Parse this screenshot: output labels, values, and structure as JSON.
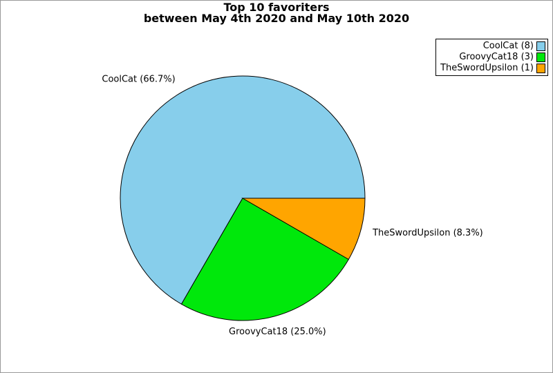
{
  "colors": {
    "figure_border": "#999999",
    "background": "#FFFFFF",
    "legend_border": "#000000",
    "text": "#000000"
  },
  "chart_data": {
    "type": "pie",
    "title": "Top 10 favoriters",
    "subtitle": "between May 4th 2020 and May 10th 2020",
    "start_angle_deg": 0,
    "direction": "counterclockwise",
    "edge_color": "#000000",
    "label_distance": 1.1,
    "legend": {
      "position": "top-right",
      "marker_side": "right"
    },
    "slices": [
      {
        "label": "CoolCat",
        "value": 8,
        "percent": 66.7,
        "color": "#87CEEB",
        "slice_label": "CoolCat (66.7%)",
        "legend_label": "CoolCat (8)"
      },
      {
        "label": "GroovyCat18",
        "value": 3,
        "percent": 25.0,
        "color": "#00E80B",
        "slice_label": "GroovyCat18 (25.0%)",
        "legend_label": "GroovyCat18 (3)"
      },
      {
        "label": "TheSwordUpsilon",
        "value": 1,
        "percent": 8.3,
        "color": "#FFA500",
        "slice_label": "TheSwordUpsilon (8.3%)",
        "legend_label": "TheSwordUpsilon (1)"
      }
    ]
  }
}
